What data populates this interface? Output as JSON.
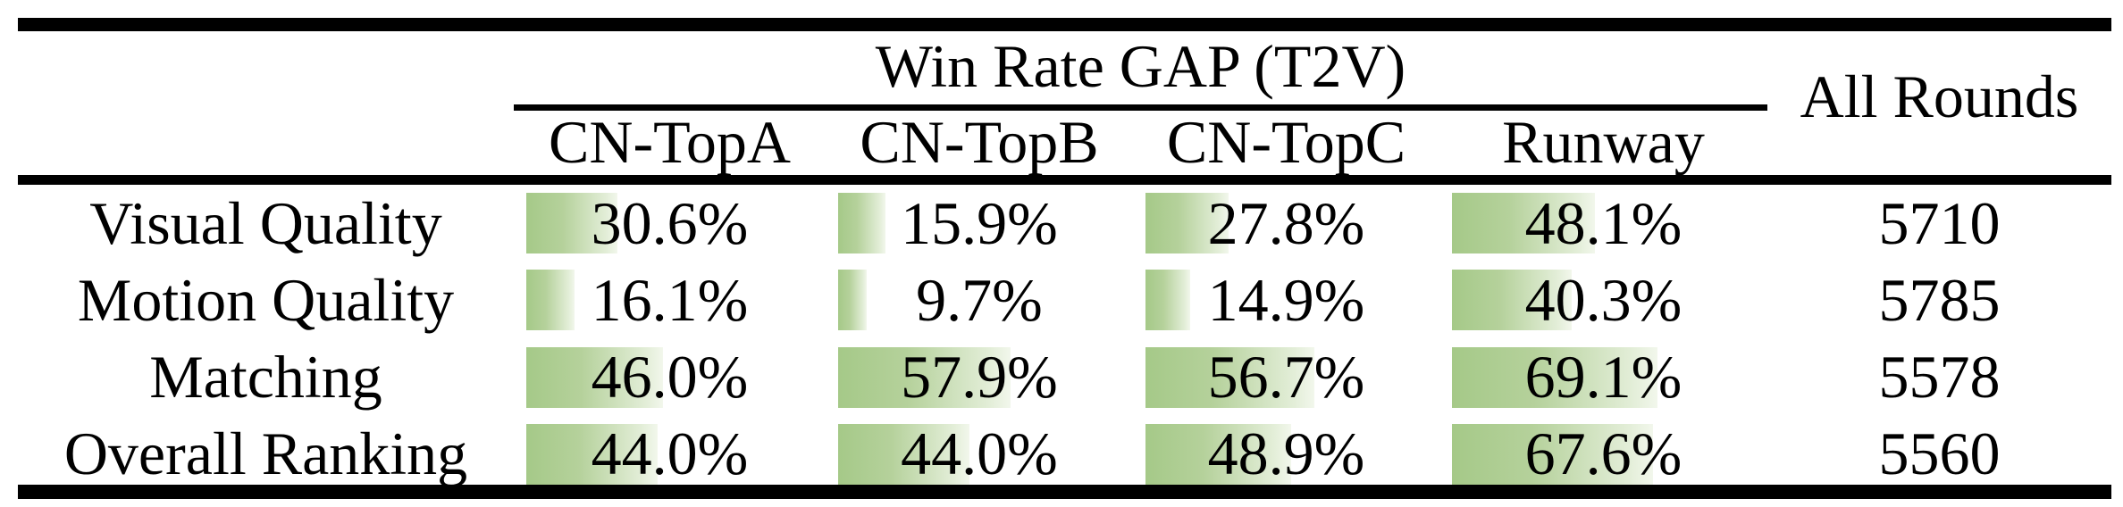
{
  "colors": {
    "bar_green_start": "#a5c988",
    "bar_green_end": "#f2f7ec",
    "rule_black": "#000000",
    "background": "#ffffff",
    "text": "#000000"
  },
  "table": {
    "group_header": "Win Rate GAP (T2V)",
    "all_rounds_header": "All Rounds",
    "columns": [
      "CN-TopA",
      "CN-TopB",
      "CN-TopC",
      "Runway"
    ],
    "rows": [
      {
        "label": "Visual Quality",
        "cells": [
          {
            "text": "30.6%",
            "value": 30.6
          },
          {
            "text": "15.9%",
            "value": 15.9
          },
          {
            "text": "27.8%",
            "value": 27.8
          },
          {
            "text": "48.1%",
            "value": 48.1
          }
        ],
        "all_rounds": "5710"
      },
      {
        "label": "Motion Quality",
        "cells": [
          {
            "text": "16.1%",
            "value": 16.1
          },
          {
            "text": "9.7%",
            "value": 9.7
          },
          {
            "text": "14.9%",
            "value": 14.9
          },
          {
            "text": "40.3%",
            "value": 40.3
          }
        ],
        "all_rounds": "5785"
      },
      {
        "label": "Matching",
        "cells": [
          {
            "text": "46.0%",
            "value": 46.0
          },
          {
            "text": "57.9%",
            "value": 57.9
          },
          {
            "text": "56.7%",
            "value": 56.7
          },
          {
            "text": "69.1%",
            "value": 69.1
          }
        ],
        "all_rounds": "5578"
      },
      {
        "label": "Overall Ranking",
        "cells": [
          {
            "text": "44.0%",
            "value": 44.0
          },
          {
            "text": "44.0%",
            "value": 44.0
          },
          {
            "text": "48.9%",
            "value": 48.9
          },
          {
            "text": "67.6%",
            "value": 67.6
          }
        ],
        "all_rounds": "5560"
      }
    ]
  },
  "chart_data": {
    "type": "table",
    "title": "Win Rate GAP (T2V)",
    "categories": [
      "Visual Quality",
      "Motion Quality",
      "Matching",
      "Overall Ranking"
    ],
    "series": [
      {
        "name": "CN-TopA",
        "values": [
          30.6,
          16.1,
          46.0,
          44.0
        ]
      },
      {
        "name": "CN-TopB",
        "values": [
          15.9,
          9.7,
          57.9,
          44.0
        ]
      },
      {
        "name": "CN-TopC",
        "values": [
          27.8,
          14.9,
          56.7,
          48.9
        ]
      },
      {
        "name": "Runway",
        "values": [
          48.1,
          40.3,
          69.1,
          67.6
        ]
      }
    ],
    "extra_column": {
      "name": "All Rounds",
      "values": [
        5710,
        5785,
        5578,
        5560
      ]
    },
    "unit": "%",
    "layout_hints": "in-cell horizontal green gradient data bars, bar length proportional to percentage; double rules top/bottom, mid rule under headers, cmidrule under group header spanning the four model columns"
  }
}
